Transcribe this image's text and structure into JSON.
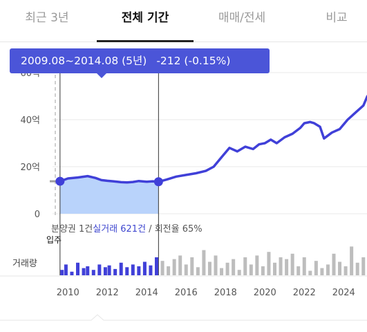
{
  "tabs": [
    {
      "label": "최근 3년",
      "active": false
    },
    {
      "label": "전체 기간",
      "active": true
    },
    {
      "label": "매매/전세",
      "active": false
    },
    {
      "label": "비교",
      "active": false
    }
  ],
  "tooltip": {
    "range": "2009.08~2014.08 (5년)",
    "change": "-212 (-0.15%)"
  },
  "info": {
    "prefix": "분양권 1건",
    "highlight": "실거래 621건",
    "suffix": " / 회전율 65%"
  },
  "movein_label": "입주",
  "volume_label": "거래량",
  "colors": {
    "line": "#4040d8",
    "selection_fill": "#b9d3fb",
    "tooltip": "#4b55d8",
    "volume_selected": "#4040d8",
    "volume_other": "#bdbdbd",
    "future_band": "#f2f2f2"
  },
  "chart_data": {
    "type": "line",
    "ylim": [
      0,
      60
    ],
    "yticks": [
      0,
      20,
      40,
      60
    ],
    "ytick_labels": [
      "0",
      "20억",
      "40억",
      "60억"
    ],
    "xlim": [
      2008.9,
      2025.9
    ],
    "xticks": [
      2010,
      2012,
      2014,
      2016,
      2018,
      2020,
      2022,
      2024
    ],
    "xtick_labels": [
      "2010",
      "2012",
      "2014",
      "2016",
      "2018",
      "2020",
      "2022",
      "2024"
    ],
    "selection": {
      "start": 2009.6,
      "end": 2014.6
    },
    "x": [
      2009.6,
      2010.0,
      2010.5,
      2011.0,
      2011.4,
      2011.7,
      2012.0,
      2012.3,
      2012.7,
      2013.0,
      2013.3,
      2013.6,
      2014.0,
      2014.3,
      2014.6,
      2015.0,
      2015.5,
      2016.0,
      2016.5,
      2017.0,
      2017.4,
      2017.8,
      2018.2,
      2018.6,
      2019.0,
      2019.4,
      2019.7,
      2020.0,
      2020.3,
      2020.6,
      2021.0,
      2021.4,
      2021.8,
      2022.0,
      2022.3,
      2022.5,
      2022.8,
      2023.0,
      2023.4,
      2023.8,
      2024.2,
      2024.6,
      2025.0,
      2025.2,
      2025.4
    ],
    "values": [
      13.8,
      15.0,
      15.4,
      16.0,
      15.2,
      14.3,
      14.0,
      13.8,
      13.4,
      13.3,
      13.5,
      13.9,
      13.6,
      13.8,
      13.6,
      14.5,
      15.8,
      16.5,
      17.2,
      18.2,
      20.0,
      24.0,
      28.0,
      26.5,
      28.5,
      27.5,
      29.5,
      30.0,
      31.5,
      30.0,
      32.5,
      34.0,
      36.5,
      38.5,
      39.0,
      38.5,
      37.0,
      32.0,
      34.5,
      36.0,
      40.0,
      43.0,
      46.0,
      50.0,
      48.0
    ],
    "volume": {
      "x": [
        2009.7,
        2009.9,
        2010.2,
        2010.5,
        2010.8,
        2011.0,
        2011.3,
        2011.6,
        2011.9,
        2012.1,
        2012.4,
        2012.7,
        2013.0,
        2013.3,
        2013.6,
        2013.9,
        2014.2,
        2014.5,
        2014.8,
        2015.1,
        2015.4,
        2015.7,
        2016.0,
        2016.3,
        2016.6,
        2016.9,
        2017.2,
        2017.5,
        2017.8,
        2018.1,
        2018.4,
        2018.7,
        2019.0,
        2019.3,
        2019.6,
        2019.9,
        2020.2,
        2020.5,
        2020.8,
        2021.1,
        2021.4,
        2021.7,
        2022.0,
        2022.3,
        2022.6,
        2022.9,
        2023.2,
        2023.5,
        2023.8,
        2024.1,
        2024.4,
        2024.7,
        2025.0,
        2025.3
      ],
      "values": [
        6,
        12,
        4,
        14,
        8,
        10,
        6,
        12,
        9,
        11,
        7,
        14,
        9,
        12,
        10,
        15,
        11,
        20,
        16,
        10,
        18,
        22,
        12,
        20,
        9,
        28,
        15,
        22,
        8,
        14,
        18,
        6,
        20,
        12,
        22,
        10,
        26,
        14,
        20,
        18,
        24,
        10,
        20,
        5,
        16,
        8,
        12,
        24,
        15,
        10,
        32,
        14,
        20,
        8
      ]
    }
  }
}
